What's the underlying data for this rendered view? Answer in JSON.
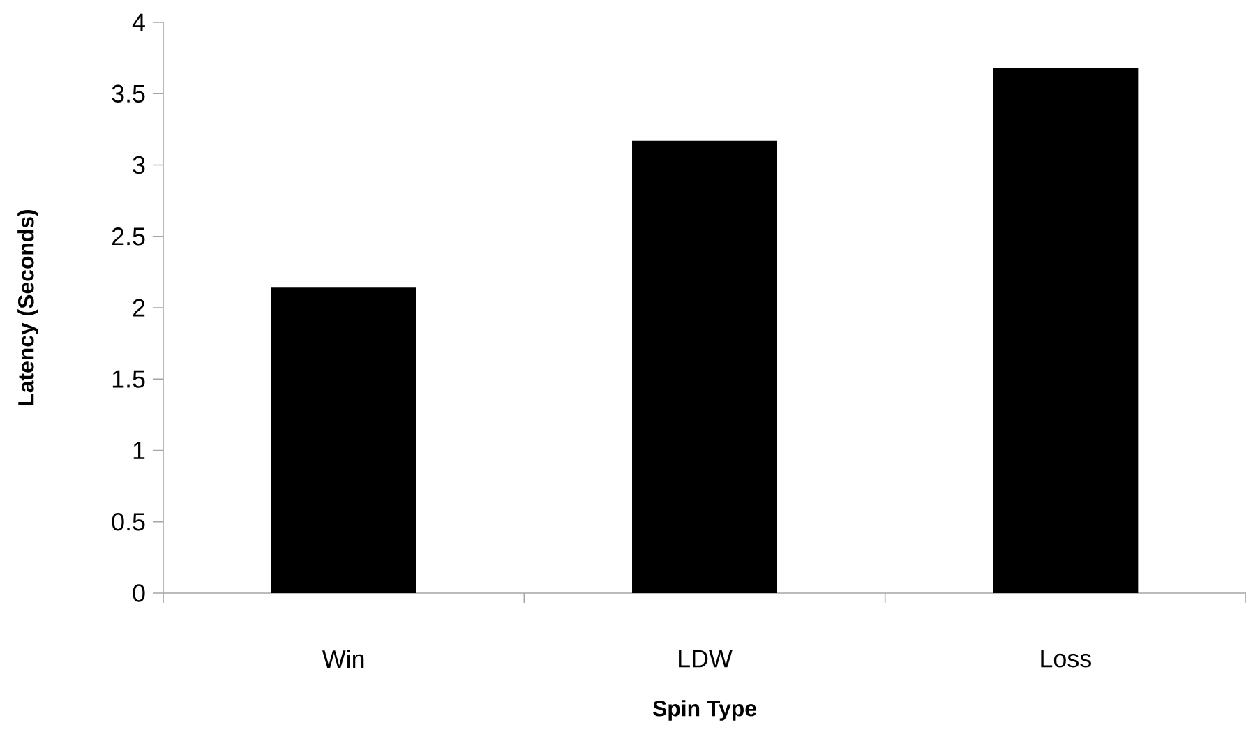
{
  "chart_data": {
    "type": "bar",
    "xlabel": "Spin Type",
    "ylabel": "Latency (Seconds)",
    "categories": [
      "Win",
      "LDW",
      "Loss"
    ],
    "values": [
      2.14,
      3.17,
      3.68
    ],
    "color": "#000000",
    "ylim": [
      0,
      4
    ],
    "yticks": [
      0,
      0.5,
      1,
      1.5,
      2,
      2.5,
      3,
      3.5,
      4
    ]
  }
}
